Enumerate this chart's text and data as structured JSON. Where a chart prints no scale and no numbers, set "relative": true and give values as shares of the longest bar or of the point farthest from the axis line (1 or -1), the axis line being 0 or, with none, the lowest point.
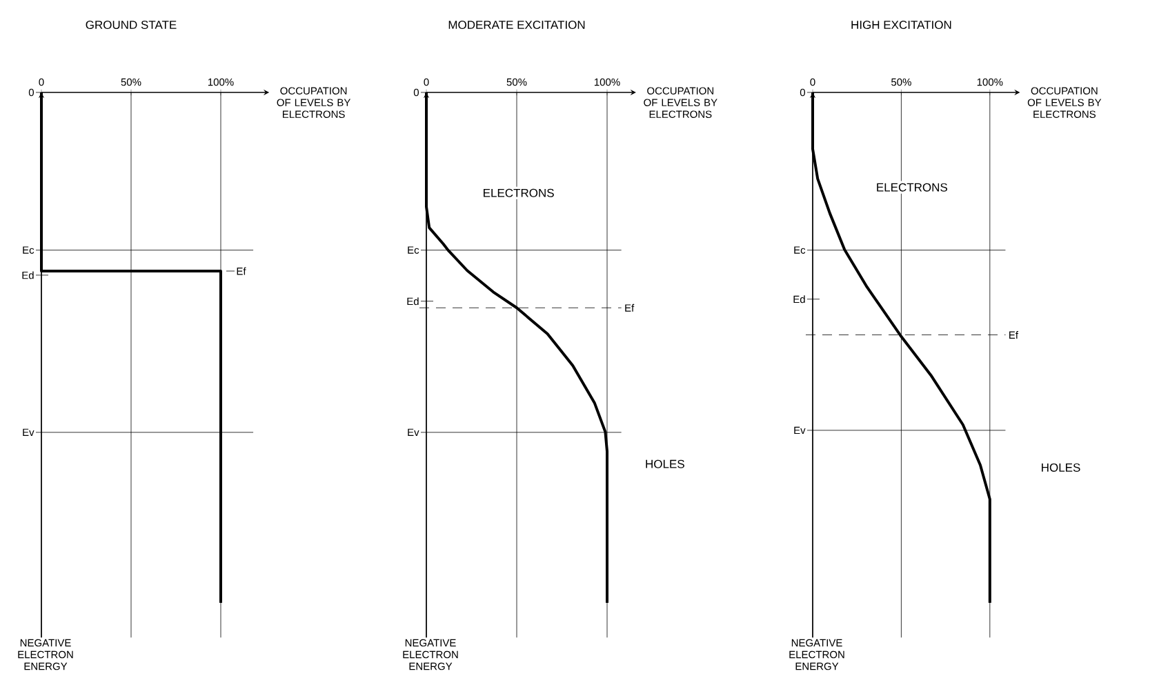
{
  "chart_data": [
    {
      "type": "line",
      "title": "GROUND STATE",
      "xlabel": "OCCUPATION OF LEVELS BY ELECTRONS",
      "ylabel": "NEGATIVE ELECTRON ENERGY",
      "relative": true,
      "xlim": [
        0,
        127
      ],
      "xticks": [
        {
          "value": 0,
          "label": "0"
        },
        {
          "value": 50,
          "label": "50%"
        },
        {
          "value": 100,
          "label": "100%"
        }
      ],
      "grid": "x",
      "series": [
        {
          "color": "#000000",
          "x": [
            0,
            0,
            100,
            100
          ],
          "values": [
            0,
            -0.35,
            -0.35,
            -1
          ]
        }
      ],
      "ref_lines": [
        {
          "axis": "y",
          "value": -0.309,
          "label": "Ec",
          "line_style": "solid"
        },
        {
          "axis": "y",
          "value": -0.358,
          "label": "Ed"
        },
        {
          "axis": "y",
          "value": -0.666,
          "label": "Ev",
          "line_style": "solid"
        }
      ],
      "annotations": [
        "0",
        {
          "text": "Ef",
          "x": 100,
          "y": -0.35
        }
      ]
    },
    {
      "type": "line",
      "title": "MODERATE EXCITATION",
      "xlabel": "OCCUPATION OF LEVELS BY ELECTRONS",
      "ylabel": "NEGATIVE ELECTRON ENERGY",
      "relative": true,
      "xlim": [
        0,
        116
      ],
      "xticks": [
        {
          "value": 0,
          "label": "0"
        },
        {
          "value": 50,
          "label": "50%"
        },
        {
          "value": 100,
          "label": "100%"
        }
      ],
      "grid": "x",
      "series": [
        {
          "color": "#000000",
          "x": [
            0,
            0,
            1.6,
            9.4,
            12,
            22.6,
            37,
            50,
            67,
            81,
            93,
            99,
            100,
            100
          ],
          "values": [
            0,
            -0.224,
            -0.265,
            -0.297,
            -0.309,
            -0.349,
            -0.391,
            -0.422,
            -0.473,
            -0.535,
            -0.608,
            -0.665,
            -0.703,
            -1
          ]
        }
      ],
      "ref_lines": [
        {
          "axis": "y",
          "value": -0.309,
          "label": "Ec",
          "line_style": "solid"
        },
        {
          "axis": "y",
          "value": -0.409,
          "label": "Ed"
        },
        {
          "axis": "y",
          "value": -0.422,
          "label": "Ef",
          "line_style": "dashed"
        },
        {
          "axis": "y",
          "value": -0.666,
          "label": "Ev",
          "line_style": "solid"
        }
      ],
      "annotations": [
        "0",
        "ELECTRONS",
        "HOLES"
      ]
    },
    {
      "type": "line",
      "title": "HIGH EXCITATION",
      "xlabel": "OCCUPATION OF LEVELS BY ELECTRONS",
      "ylabel": "NEGATIVE ELECTRON ENERGY",
      "relative": true,
      "xlim": [
        0,
        117
      ],
      "xticks": [
        {
          "value": 0,
          "label": "0"
        },
        {
          "value": 50,
          "label": "50%"
        },
        {
          "value": 100,
          "label": "100%"
        }
      ],
      "grid": "x",
      "series": [
        {
          "color": "#000000",
          "x": [
            0,
            0,
            2.8,
            9.7,
            18,
            30.6,
            49.5,
            66.7,
            84.8,
            94.6,
            100,
            100
          ],
          "values": [
            0,
            -0.111,
            -0.169,
            -0.237,
            -0.308,
            -0.381,
            -0.476,
            -0.554,
            -0.651,
            -0.73,
            -0.797,
            -1
          ]
        }
      ],
      "ref_lines": [
        {
          "axis": "y",
          "value": -0.309,
          "label": "Ec",
          "line_style": "solid"
        },
        {
          "axis": "y",
          "value": -0.405,
          "label": "Ed"
        },
        {
          "axis": "y",
          "value": -0.475,
          "label": "Ef",
          "line_style": "dashed"
        },
        {
          "axis": "y",
          "value": -0.662,
          "label": "Ev",
          "line_style": "solid"
        }
      ],
      "annotations": [
        "0",
        "ELECTRONS",
        "HOLES"
      ]
    }
  ]
}
